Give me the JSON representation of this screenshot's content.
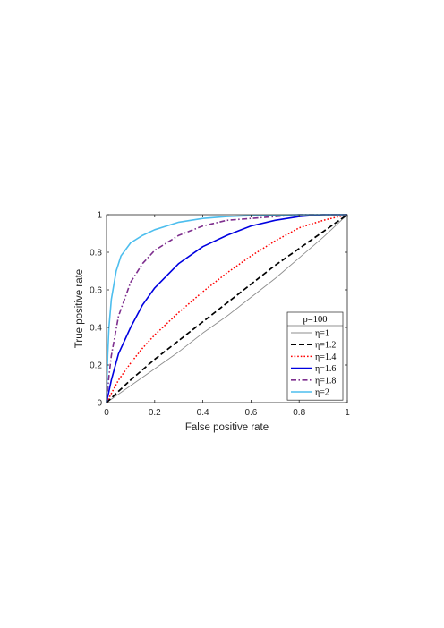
{
  "chart_data": {
    "type": "line",
    "title": "",
    "xlabel": "False positive rate",
    "ylabel": "True positive rate",
    "xlim": [
      0,
      1
    ],
    "ylim": [
      0,
      1
    ],
    "xticks": [
      "0",
      "0.2",
      "0.4",
      "0.6",
      "0.8",
      "1"
    ],
    "yticks": [
      "0",
      "0.2",
      "0.4",
      "0.6",
      "0.8",
      "1"
    ],
    "grid": false,
    "legend": {
      "title": "p=100",
      "placement": "bottom-right"
    },
    "series": [
      {
        "name": "η=1",
        "color": "#8c8c8c",
        "dash": "solid",
        "x": [
          0,
          0.1,
          0.2,
          0.3,
          0.4,
          0.5,
          0.6,
          0.7,
          0.8,
          0.9,
          1
        ],
        "y": [
          0,
          0.09,
          0.18,
          0.27,
          0.37,
          0.46,
          0.56,
          0.66,
          0.77,
          0.88,
          1
        ]
      },
      {
        "name": "η=1.2",
        "color": "#000000",
        "dash": "dashed",
        "x": [
          0,
          0.05,
          0.1,
          0.2,
          0.3,
          0.4,
          0.5,
          0.6,
          0.7,
          0.8,
          0.9,
          1
        ],
        "y": [
          0,
          0.06,
          0.12,
          0.23,
          0.33,
          0.43,
          0.53,
          0.63,
          0.73,
          0.82,
          0.91,
          1
        ]
      },
      {
        "name": "η=1.4",
        "color": "#ff0000",
        "dash": "dotted",
        "x": [
          0,
          0.05,
          0.1,
          0.15,
          0.2,
          0.3,
          0.4,
          0.5,
          0.6,
          0.7,
          0.8,
          0.9,
          1
        ],
        "y": [
          0,
          0.12,
          0.21,
          0.29,
          0.36,
          0.48,
          0.59,
          0.69,
          0.78,
          0.86,
          0.93,
          0.97,
          1
        ]
      },
      {
        "name": "η=1.6",
        "color": "#0000e0",
        "dash": "solid",
        "x": [
          0,
          0.02,
          0.05,
          0.1,
          0.15,
          0.2,
          0.3,
          0.4,
          0.5,
          0.6,
          0.7,
          0.8,
          0.9,
          1
        ],
        "y": [
          0,
          0.12,
          0.26,
          0.4,
          0.52,
          0.61,
          0.74,
          0.83,
          0.89,
          0.94,
          0.97,
          0.99,
          1,
          1
        ]
      },
      {
        "name": "η=1.8",
        "color": "#7e2f8e",
        "dash": "dashdot",
        "x": [
          0,
          0.01,
          0.02,
          0.05,
          0.1,
          0.15,
          0.2,
          0.3,
          0.4,
          0.5,
          0.6,
          0.7,
          0.8,
          0.9,
          1
        ],
        "y": [
          0,
          0.14,
          0.25,
          0.46,
          0.64,
          0.74,
          0.81,
          0.89,
          0.94,
          0.97,
          0.98,
          0.99,
          1,
          1,
          1
        ]
      },
      {
        "name": "η=2",
        "color": "#4dbeee",
        "dash": "solid",
        "x": [
          0,
          0.005,
          0.01,
          0.02,
          0.04,
          0.06,
          0.1,
          0.15,
          0.2,
          0.3,
          0.4,
          0.5,
          0.6,
          0.8,
          1
        ],
        "y": [
          0,
          0.25,
          0.4,
          0.55,
          0.7,
          0.78,
          0.85,
          0.89,
          0.92,
          0.96,
          0.98,
          0.99,
          0.995,
          1,
          1
        ]
      }
    ]
  }
}
